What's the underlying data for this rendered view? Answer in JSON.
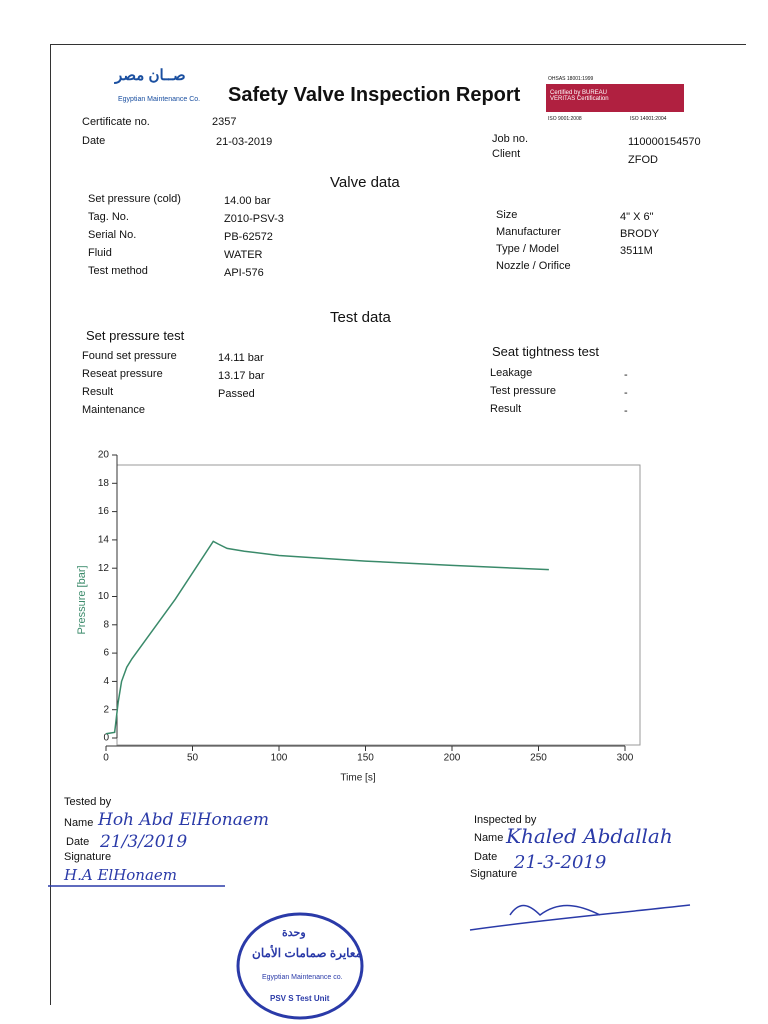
{
  "header": {
    "logo_arabic": "صــان مصر",
    "logo_english": "Egyptian Maintenance Co.",
    "title": "Safety Valve Inspection Report",
    "certification": {
      "standard1": "OHSAS 18001:1999",
      "certified_by": "Certified by BUREAU VERITAS Certification",
      "standard2": "ISO 9001:2008",
      "standard3": "ISO 14001:2004"
    }
  },
  "info": {
    "left": [
      [
        "Certificate no.",
        "2357"
      ],
      [
        "Date",
        "21-03-2019"
      ]
    ],
    "right": [
      [
        "Job no.",
        "110000154570"
      ],
      [
        "Client",
        "ZFOD"
      ]
    ]
  },
  "valve_data": {
    "heading": "Valve data",
    "left": [
      [
        "Set pressure (cold)",
        "14.00 bar"
      ],
      [
        "Tag. No.",
        "Z010-PSV-3"
      ],
      [
        "Serial No.",
        "PB-62572"
      ],
      [
        "Fluid",
        "WATER"
      ],
      [
        "Test method",
        "API-576"
      ]
    ],
    "right": [
      [
        "Size",
        "4\" X 6\""
      ],
      [
        "Manufacturer",
        "BRODY"
      ],
      [
        "Type / Model",
        "3511M"
      ],
      [
        "Nozzle / Orifice",
        ""
      ]
    ]
  },
  "test_data": {
    "heading": "Test data",
    "set_pressure_test": {
      "heading": "Set pressure test",
      "rows": [
        [
          "Found set pressure",
          "14.11 bar"
        ],
        [
          "Reseat pressure",
          "13.17 bar"
        ],
        [
          "Result",
          "Passed"
        ],
        [
          "Maintenance",
          ""
        ]
      ]
    },
    "seat_tightness_test": {
      "heading": "Seat tightness test",
      "rows": [
        [
          "Leakage",
          "-"
        ],
        [
          "Test pressure",
          "-"
        ],
        [
          "Result",
          "-"
        ]
      ]
    }
  },
  "chart_data": {
    "type": "line",
    "xlabel": "Time [s]",
    "ylabel": "Pressure [bar]",
    "x": [
      0,
      5,
      7,
      9,
      12,
      15,
      40,
      62,
      65,
      70,
      80,
      100,
      150,
      200,
      256
    ],
    "values": [
      0.3,
      0.4,
      2.5,
      4.0,
      5.0,
      5.6,
      9.8,
      13.9,
      13.7,
      13.4,
      13.2,
      12.9,
      12.5,
      12.2,
      11.9
    ],
    "color": "#3a8a6a",
    "xlim": [
      0,
      300
    ],
    "ylim": [
      0,
      20
    ],
    "xticks": [
      0,
      50,
      100,
      150,
      200,
      250,
      300
    ],
    "yticks": [
      0,
      2,
      4,
      6,
      8,
      10,
      12,
      14,
      16,
      18,
      20
    ]
  },
  "signatures": {
    "tested_by": {
      "heading": "Tested by",
      "name_label": "Name",
      "name": "Hoh Abd ElHonaem",
      "date_label": "Date",
      "date": "21/3/2019",
      "signature_label": "Signature",
      "signature": "H.A ElHonaem"
    },
    "inspected_by": {
      "heading": "Inspected by",
      "name_label": "Name",
      "name": "Khaled Abdallah",
      "date_label": "Date",
      "date": "21-3-2019",
      "signature_label": "Signature"
    }
  },
  "stamp": {
    "line1": "وحدة",
    "line2": "معايرة صمامات الأمان",
    "line3": "Egyptian Maintenance co.",
    "line4": "PSV S Test Unit"
  }
}
